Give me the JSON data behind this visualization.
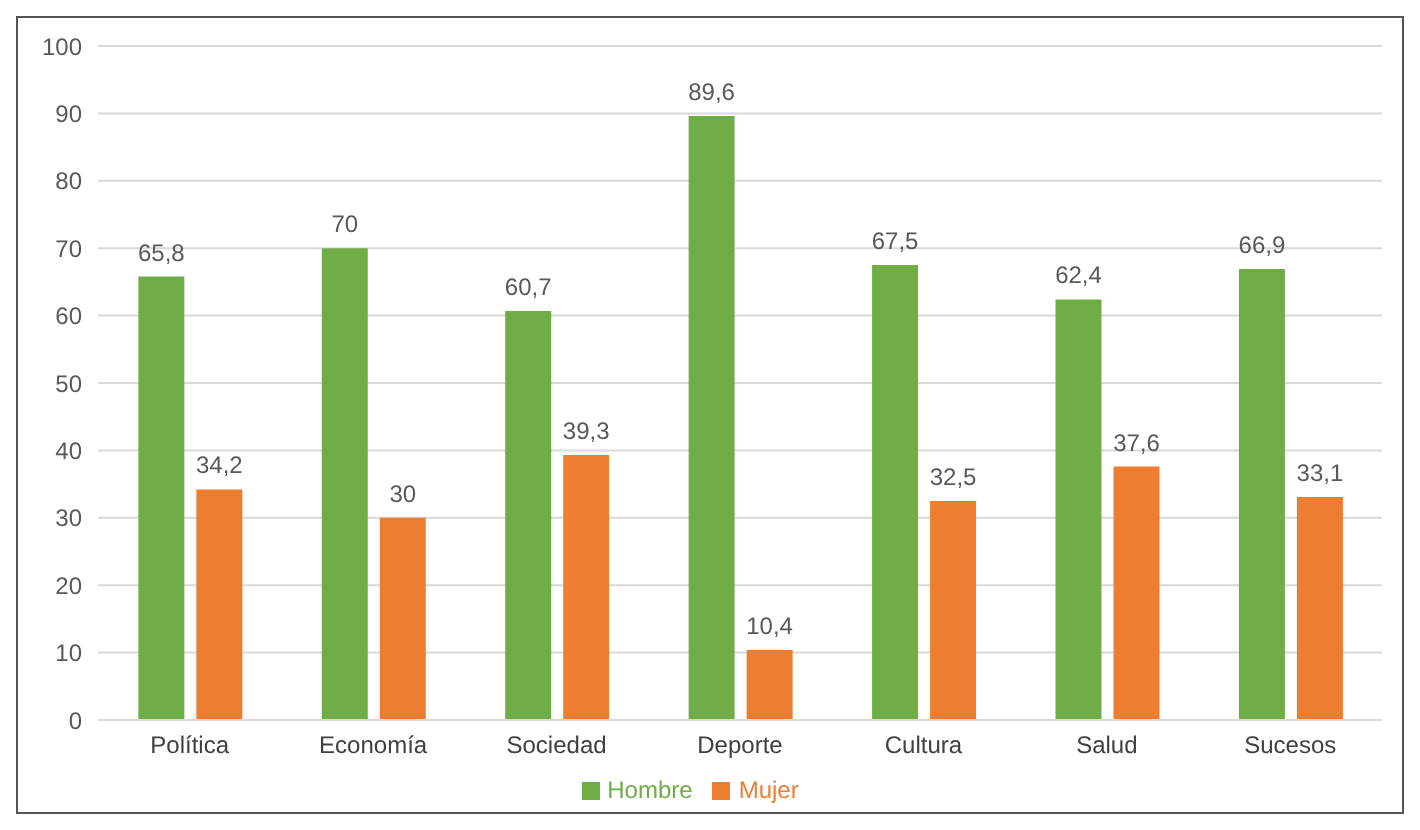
{
  "chart_data": {
    "type": "bar",
    "categories": [
      "Política",
      "Economía",
      "Sociedad",
      "Deporte",
      "Cultura",
      "Salud",
      "Sucesos"
    ],
    "series": [
      {
        "name": "Hombre",
        "color": "#70ad47",
        "values": [
          65.8,
          70,
          60.7,
          89.6,
          67.5,
          62.4,
          66.9
        ],
        "value_labels": [
          "65,8",
          "70",
          "60,7",
          "89,6",
          "67,5",
          "62,4",
          "66,9"
        ]
      },
      {
        "name": "Mujer",
        "color": "#ed7d31",
        "values": [
          34.2,
          30,
          39.3,
          10.4,
          32.5,
          37.6,
          33.1
        ],
        "value_labels": [
          "34,2",
          "30",
          "39,3",
          "10,4",
          "32,5",
          "37,6",
          "33,1"
        ]
      }
    ],
    "ylim": [
      0,
      100
    ],
    "yticks": [
      0,
      10,
      20,
      30,
      40,
      50,
      60,
      70,
      80,
      90,
      100
    ],
    "grid": "y",
    "legend": "bottom"
  }
}
